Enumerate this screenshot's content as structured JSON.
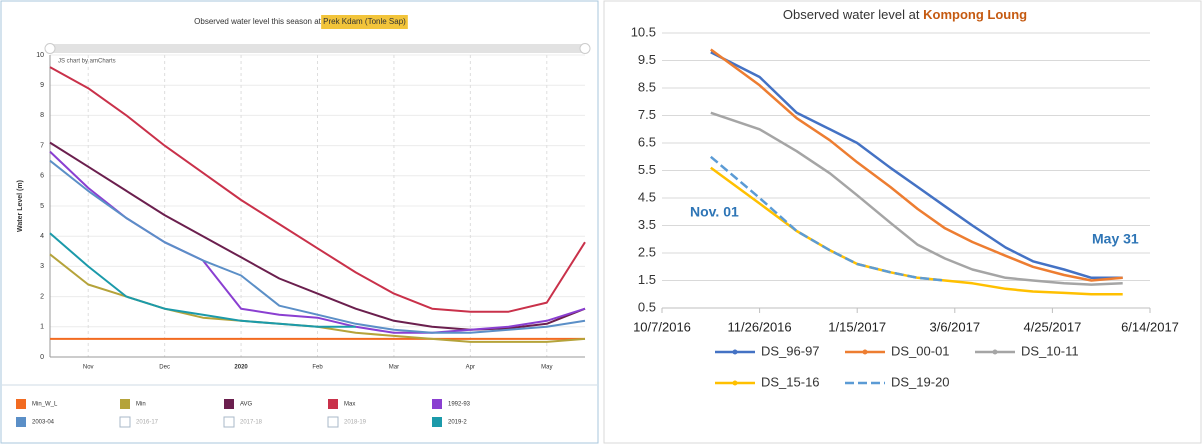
{
  "chart_data": [
    {
      "type": "line",
      "title": "Observed water level this season at",
      "title_highlight": "Prek Kdam (Tonle Sap)",
      "credit": "JS chart by amCharts",
      "y_label": "Water Level (m)",
      "categories": [
        null,
        "Nov",
        null,
        "Dec",
        null,
        "2020",
        null,
        "Feb",
        null,
        "Mar",
        null,
        "Apr",
        null,
        "May",
        null
      ],
      "ylim": [
        0,
        10
      ],
      "yticks": [
        0,
        1,
        2,
        3,
        4,
        5,
        6,
        7,
        8,
        9,
        10
      ],
      "grid": true,
      "legend": "bottom",
      "series": [
        {
          "name": "Min_W_L",
          "color": "#f26b21",
          "values": [
            0.6,
            0.6,
            0.6,
            0.6,
            0.6,
            0.6,
            0.6,
            0.6,
            0.6,
            0.6,
            0.6,
            0.6,
            0.6,
            0.6,
            0.6
          ]
        },
        {
          "name": "Min",
          "color": "#b5a33a",
          "values": [
            3.4,
            2.4,
            2.0,
            1.6,
            1.3,
            1.2,
            1.1,
            1.0,
            0.8,
            0.7,
            0.6,
            0.5,
            0.5,
            0.5,
            0.6
          ]
        },
        {
          "name": "AVG",
          "color": "#6b1f4e",
          "values": [
            7.1,
            6.3,
            5.5,
            4.7,
            4.0,
            3.3,
            2.6,
            2.1,
            1.6,
            1.2,
            1.0,
            0.9,
            0.95,
            1.1,
            1.6
          ]
        },
        {
          "name": "Max",
          "color": "#c9314a",
          "values": [
            9.6,
            8.9,
            8.0,
            7.0,
            6.1,
            5.2,
            4.4,
            3.6,
            2.8,
            2.1,
            1.6,
            1.5,
            1.5,
            1.8,
            3.8
          ]
        },
        {
          "name": "1992-93",
          "color": "#8a3fd1",
          "values": [
            6.8,
            5.6,
            4.6,
            3.8,
            3.2,
            1.6,
            1.4,
            1.3,
            1.0,
            0.8,
            0.8,
            0.9,
            1.0,
            1.2,
            1.6
          ]
        },
        {
          "name": "2003-04",
          "color": "#5b8fc7",
          "values": [
            6.5,
            5.5,
            4.6,
            3.8,
            3.2,
            2.7,
            1.7,
            1.4,
            1.1,
            0.9,
            0.8,
            0.8,
            0.9,
            1.0,
            1.2
          ]
        },
        {
          "name": "2016-17",
          "color": "#aab8c8",
          "visible": false
        },
        {
          "name": "2017-18",
          "color": "#aab8c8",
          "visible": false
        },
        {
          "name": "2018-19",
          "color": "#aab8c8",
          "visible": false
        },
        {
          "name": "2019-2",
          "color": "#1b9aaa",
          "values": [
            4.1,
            3.0,
            2.0,
            1.6,
            1.4,
            1.2,
            1.1,
            1.0,
            1.0,
            null,
            null,
            null,
            null,
            null,
            null
          ]
        }
      ]
    },
    {
      "type": "line",
      "title": "Observed water level at",
      "title_highlight": "Kompong Loung",
      "x": [
        "11/1/2016",
        "11/26/2016",
        "12/15/2016",
        "1/1/2017",
        "1/15/2017",
        "2/1/2017",
        "2/15/2017",
        "3/1/2017",
        "3/15/2017",
        "4/1/2017",
        "4/15/2017",
        "5/1/2017",
        "5/15/2017",
        "5/31/2017"
      ],
      "xlim": [
        "10/7/2016",
        "6/14/2017"
      ],
      "xticks": [
        "10/7/2016",
        "11/26/2016",
        "1/15/2017",
        "3/6/2017",
        "4/25/2017",
        "6/14/2017"
      ],
      "ylim": [
        0.5,
        10.5
      ],
      "yticks": [
        0.5,
        1.5,
        2.5,
        3.5,
        4.5,
        5.5,
        6.5,
        7.5,
        8.5,
        9.5,
        10.5
      ],
      "grid": true,
      "legend": "bottom",
      "annotations": [
        "Nov. 01",
        "May 31"
      ],
      "series": [
        {
          "name": "DS_96-97",
          "color": "#4472c4",
          "values": [
            9.8,
            8.9,
            7.6,
            7.0,
            6.5,
            5.6,
            4.9,
            4.2,
            3.5,
            2.7,
            2.2,
            1.9,
            1.6,
            1.6
          ]
        },
        {
          "name": "DS_00-01",
          "color": "#ed7d31",
          "values": [
            9.9,
            8.6,
            7.4,
            6.6,
            5.8,
            4.9,
            4.1,
            3.4,
            2.9,
            2.4,
            2.0,
            1.7,
            1.5,
            1.6
          ]
        },
        {
          "name": "DS_10-11",
          "color": "#a5a5a5",
          "values": [
            7.6,
            7.0,
            6.2,
            5.4,
            4.6,
            3.6,
            2.8,
            2.3,
            1.9,
            1.6,
            1.5,
            1.4,
            1.35,
            1.4
          ]
        },
        {
          "name": "DS_15-16",
          "color": "#ffc000",
          "values": [
            5.6,
            4.3,
            3.3,
            2.6,
            2.1,
            1.8,
            1.6,
            1.5,
            1.4,
            1.2,
            1.1,
            1.05,
            1.0,
            1.0
          ]
        },
        {
          "name": "DS_19-20",
          "color": "#5b9bd5",
          "dash": true,
          "values": [
            6.0,
            4.5,
            3.3,
            2.6,
            2.1,
            1.8,
            1.6,
            1.5,
            null,
            null,
            null,
            null,
            null,
            null
          ]
        }
      ]
    }
  ]
}
